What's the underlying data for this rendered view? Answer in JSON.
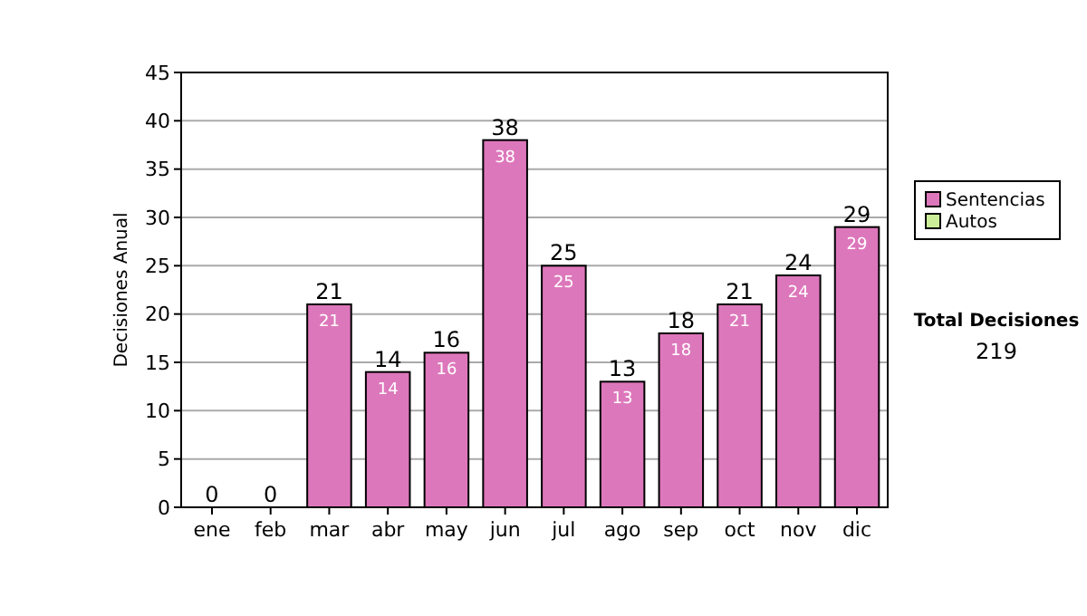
{
  "chart_data": {
    "type": "bar",
    "ylabel": "Decisiones Anual",
    "categories": [
      "ene",
      "feb",
      "mar",
      "abr",
      "may",
      "jun",
      "jul",
      "ago",
      "sep",
      "oct",
      "nov",
      "dic"
    ],
    "series": [
      {
        "name": "Sentencias",
        "color": "#dd77bb",
        "values": [
          0,
          0,
          21,
          14,
          16,
          38,
          25,
          13,
          18,
          21,
          24,
          29
        ],
        "value_labels": [
          null,
          null,
          "21",
          "14",
          "16",
          "38",
          "25",
          "13",
          "18",
          "21",
          "24",
          "29"
        ]
      },
      {
        "name": "Autos",
        "color": "#ccee99",
        "values": [
          0,
          0,
          0,
          0,
          0,
          0,
          0,
          0,
          0,
          0,
          0,
          0
        ]
      }
    ],
    "totals": [
      "0",
      "0",
      "21",
      "14",
      "16",
      "38",
      "25",
      "13",
      "18",
      "21",
      "24",
      "29"
    ],
    "ylim": [
      0,
      45
    ],
    "yticks": [
      0,
      5,
      10,
      15,
      20,
      25,
      30,
      35,
      40,
      45
    ],
    "grid": "y",
    "legend": "right",
    "annotations": [
      "Total Decisiones",
      "219"
    ]
  }
}
